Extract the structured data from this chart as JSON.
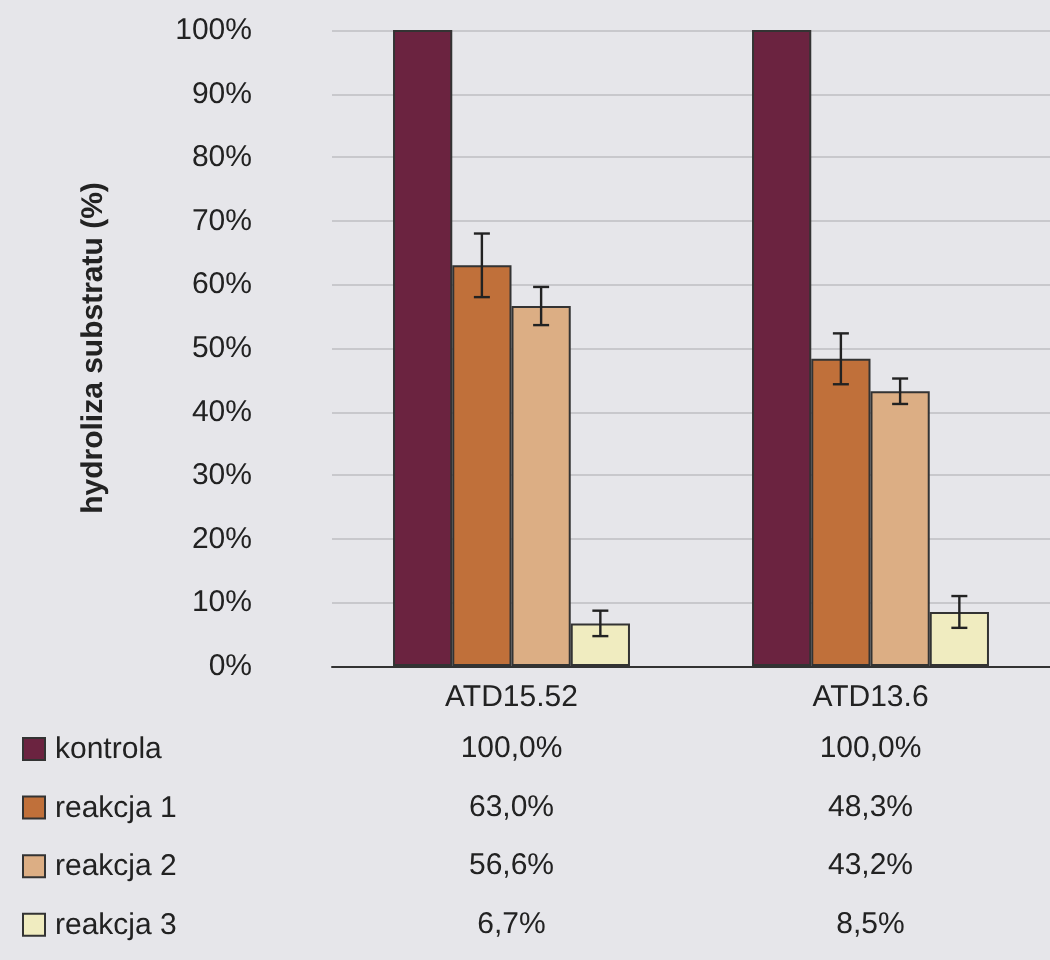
{
  "chart_data": {
    "type": "bar",
    "ylabel": "hydroliza substratu (%)",
    "categories": [
      "ATD15.52",
      "ATD13.6"
    ],
    "series": [
      {
        "name": "kontrola",
        "color": "#6b2340",
        "values": [
          100.0,
          100.0
        ],
        "value_labels": [
          "100,0%",
          "100,0%"
        ]
      },
      {
        "name": "reakcja 1",
        "color": "#c0703a",
        "values": [
          63.0,
          48.3
        ],
        "errors": [
          5,
          4
        ],
        "value_labels": [
          "63,0%",
          "48,3%"
        ]
      },
      {
        "name": "reakcja 2",
        "color": "#dcae84",
        "values": [
          56.6,
          43.2
        ],
        "errors": [
          3,
          2
        ],
        "value_labels": [
          "56,6%",
          "43,2%"
        ]
      },
      {
        "name": "reakcja 3",
        "color": "#f0ecc0",
        "values": [
          6.7,
          8.5
        ],
        "errors": [
          2,
          2.5
        ],
        "value_labels": [
          "6,7%",
          "8,5%"
        ]
      }
    ],
    "ylim": [
      0,
      100
    ],
    "yticks": [
      {
        "value": 0,
        "label": "0%"
      },
      {
        "value": 10,
        "label": "10%"
      },
      {
        "value": 20,
        "label": "20%"
      },
      {
        "value": 30,
        "label": "30%"
      },
      {
        "value": 40,
        "label": "40%"
      },
      {
        "value": 50,
        "label": "50%"
      },
      {
        "value": 60,
        "label": "60%"
      },
      {
        "value": 70,
        "label": "70%"
      },
      {
        "value": 80,
        "label": "80%"
      },
      {
        "value": 90,
        "label": "90%"
      },
      {
        "value": 100,
        "label": "100%"
      }
    ],
    "grid": "y",
    "legend": "bottom"
  }
}
